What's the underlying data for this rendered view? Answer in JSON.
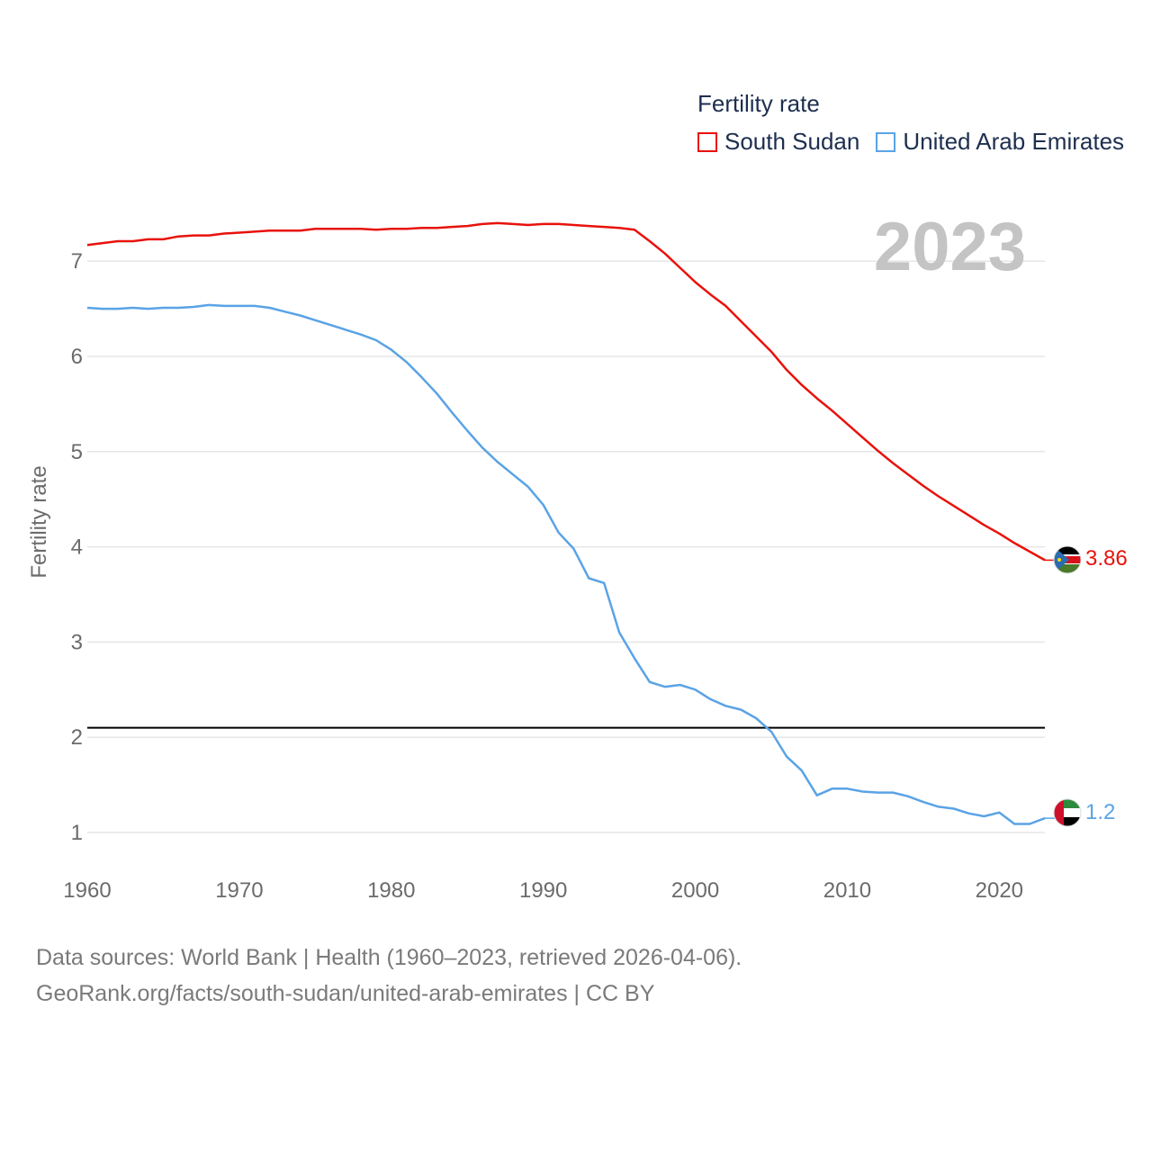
{
  "legend": {
    "title": "Fertility rate",
    "items": [
      {
        "label": "South Sudan",
        "color": "#e8120b"
      },
      {
        "label": "United Arab Emirates",
        "color": "#5aa3e6"
      }
    ]
  },
  "footer": {
    "line1": "Data sources: World Bank | Health (1960–2023, retrieved 2026-04-06).",
    "line2": "GeoRank.org/facts/south-sudan/united-arab-emirates | CC BY"
  },
  "chart_data": {
    "type": "line",
    "title": "Fertility rate",
    "year_label": "2023",
    "xlabel": "",
    "ylabel": "Fertility rate",
    "xlim": [
      1960,
      2023
    ],
    "ylim": [
      0.5,
      7.7
    ],
    "x_ticks": [
      1960,
      1970,
      1980,
      1990,
      2000,
      2010,
      2020
    ],
    "y_ticks": [
      1,
      2,
      3,
      4,
      5,
      6,
      7
    ],
    "grid": true,
    "reference_line": {
      "value": 2.1,
      "color": "#000000"
    },
    "series": [
      {
        "name": "South Sudan",
        "color": "#e8120b",
        "end_label": "3.86",
        "x_start": 1960,
        "values": [
          7.17,
          7.19,
          7.21,
          7.21,
          7.23,
          7.23,
          7.26,
          7.27,
          7.27,
          7.29,
          7.3,
          7.31,
          7.32,
          7.32,
          7.32,
          7.34,
          7.34,
          7.34,
          7.34,
          7.33,
          7.34,
          7.34,
          7.35,
          7.35,
          7.36,
          7.37,
          7.39,
          7.4,
          7.39,
          7.38,
          7.39,
          7.39,
          7.38,
          7.37,
          7.36,
          7.35,
          7.33,
          7.21,
          7.08,
          6.93,
          6.78,
          6.65,
          6.53,
          6.37,
          6.21,
          6.05,
          5.86,
          5.7,
          5.56,
          5.43,
          5.29,
          5.15,
          5.01,
          4.88,
          4.76,
          4.64,
          4.53,
          4.43,
          4.33,
          4.23,
          4.14,
          4.04,
          3.95,
          3.86
        ]
      },
      {
        "name": "United Arab Emirates",
        "color": "#5aa3e6",
        "end_label": "1.2",
        "x_start": 1960,
        "values": [
          6.51,
          6.5,
          6.5,
          6.51,
          6.5,
          6.51,
          6.51,
          6.52,
          6.54,
          6.53,
          6.53,
          6.53,
          6.51,
          6.47,
          6.43,
          6.38,
          6.33,
          6.28,
          6.23,
          6.17,
          6.07,
          5.94,
          5.78,
          5.61,
          5.41,
          5.22,
          5.04,
          4.89,
          4.76,
          4.63,
          4.44,
          4.15,
          3.98,
          3.67,
          3.62,
          3.1,
          2.83,
          2.58,
          2.53,
          2.55,
          2.5,
          2.4,
          2.33,
          2.29,
          2.2,
          2.06,
          1.8,
          1.65,
          1.39,
          1.46,
          1.46,
          1.43,
          1.42,
          1.42,
          1.38,
          1.32,
          1.27,
          1.25,
          1.2,
          1.17,
          1.21,
          1.09,
          1.09,
          1.15
        ]
      }
    ]
  }
}
